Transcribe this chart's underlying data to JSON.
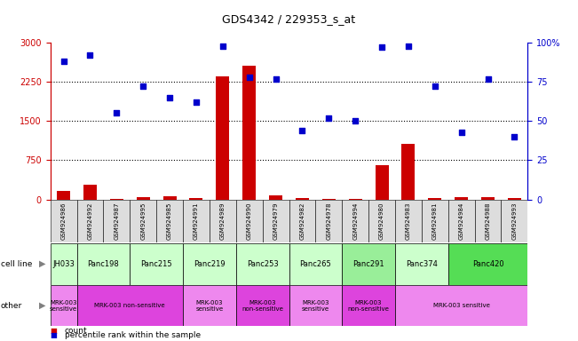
{
  "title": "GDS4342 / 229353_s_at",
  "samples": [
    "GSM924986",
    "GSM924992",
    "GSM924987",
    "GSM924995",
    "GSM924985",
    "GSM924991",
    "GSM924989",
    "GSM924990",
    "GSM924979",
    "GSM924982",
    "GSM924978",
    "GSM924994",
    "GSM924980",
    "GSM924983",
    "GSM924981",
    "GSM924984",
    "GSM924988",
    "GSM924993"
  ],
  "counts": [
    170,
    290,
    15,
    45,
    55,
    25,
    2350,
    2560,
    80,
    20,
    15,
    10,
    660,
    1070,
    30,
    45,
    50,
    30
  ],
  "percentile_ranks": [
    88,
    92,
    55,
    72,
    65,
    62,
    98,
    78,
    77,
    44,
    52,
    50,
    97,
    98,
    72,
    43,
    77,
    40
  ],
  "cell_lines": [
    {
      "label": "JH033",
      "start": 0,
      "end": 1,
      "color": "#ccffcc"
    },
    {
      "label": "Panc198",
      "start": 1,
      "end": 3,
      "color": "#ccffcc"
    },
    {
      "label": "Panc215",
      "start": 3,
      "end": 5,
      "color": "#ccffcc"
    },
    {
      "label": "Panc219",
      "start": 5,
      "end": 7,
      "color": "#ccffcc"
    },
    {
      "label": "Panc253",
      "start": 7,
      "end": 9,
      "color": "#ccffcc"
    },
    {
      "label": "Panc265",
      "start": 9,
      "end": 11,
      "color": "#ccffcc"
    },
    {
      "label": "Panc291",
      "start": 11,
      "end": 13,
      "color": "#99ee99"
    },
    {
      "label": "Panc374",
      "start": 13,
      "end": 15,
      "color": "#ccffcc"
    },
    {
      "label": "Panc420",
      "start": 15,
      "end": 18,
      "color": "#55dd55"
    }
  ],
  "other_groups": [
    {
      "label": "MRK-003\nsensitive",
      "start": 0,
      "end": 1,
      "color": "#ee88ee"
    },
    {
      "label": "MRK-003 non-sensitive",
      "start": 1,
      "end": 5,
      "color": "#dd44dd"
    },
    {
      "label": "MRK-003\nsensitive",
      "start": 5,
      "end": 7,
      "color": "#ee88ee"
    },
    {
      "label": "MRK-003\nnon-sensitive",
      "start": 7,
      "end": 9,
      "color": "#dd44dd"
    },
    {
      "label": "MRK-003\nsensitive",
      "start": 9,
      "end": 11,
      "color": "#ee88ee"
    },
    {
      "label": "MRK-003\nnon-sensitive",
      "start": 11,
      "end": 13,
      "color": "#dd44dd"
    },
    {
      "label": "MRK-003 sensitive",
      "start": 13,
      "end": 18,
      "color": "#ee88ee"
    }
  ],
  "ylim_left": [
    0,
    3000
  ],
  "ylim_right": [
    0,
    100
  ],
  "yticks_left": [
    0,
    750,
    1500,
    2250,
    3000
  ],
  "ytick_labels_left": [
    "0",
    "750",
    "1500",
    "2250",
    "3000"
  ],
  "yticks_right": [
    0,
    25,
    50,
    75,
    100
  ],
  "ytick_labels_right": [
    "0",
    "25",
    "50",
    "75",
    "100%"
  ],
  "bar_color": "#cc0000",
  "dot_color": "#0000cc",
  "dotted_lines": [
    750,
    1500,
    2250
  ],
  "xticklabel_bg": "#dddddd"
}
